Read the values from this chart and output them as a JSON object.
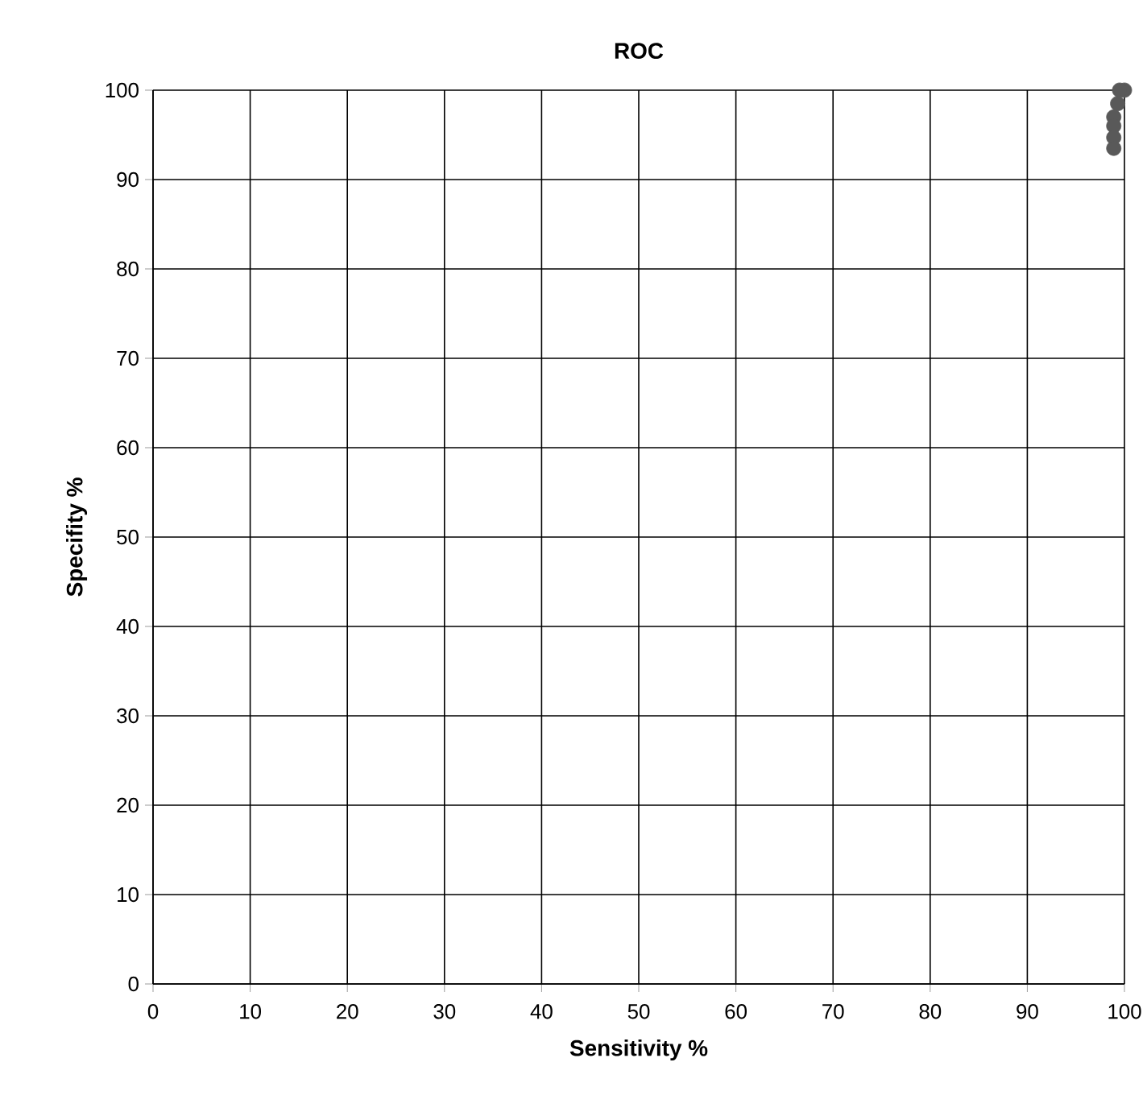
{
  "chart_data": {
    "type": "scatter",
    "title": "ROC",
    "xlabel": "Sensitivity %",
    "ylabel": "Specifity %",
    "x": [
      100,
      99.5,
      99.3,
      98.9,
      98.9,
      98.9,
      98.9
    ],
    "values": [
      100,
      100,
      98.5,
      97,
      96,
      94.7,
      93.5
    ],
    "color": "#595959",
    "xlim": [
      0,
      100
    ],
    "ylim": [
      0,
      100
    ],
    "xticks": [
      0,
      10,
      20,
      30,
      40,
      50,
      60,
      70,
      80,
      90,
      100
    ],
    "yticks": [
      0,
      10,
      20,
      30,
      40,
      50,
      60,
      70,
      80,
      90,
      100
    ],
    "grid": true
  }
}
